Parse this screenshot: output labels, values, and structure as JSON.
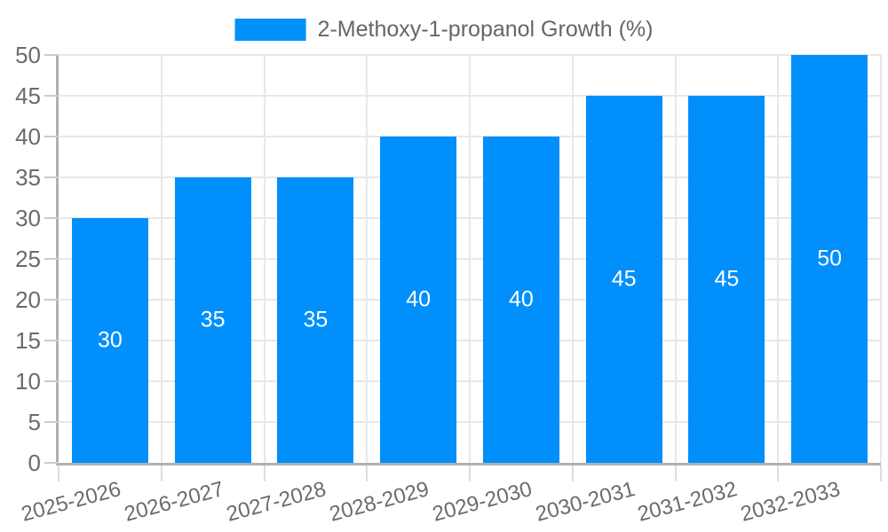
{
  "chart_data": {
    "type": "bar",
    "title": "2-Methoxy-1-propanol Growth (%)",
    "legend_position": "top",
    "categories": [
      "2025-2026",
      "2026-2027",
      "2027-2028",
      "2028-2029",
      "2029-2030",
      "2030-2031",
      "2031-2032",
      "2032-2033"
    ],
    "values": [
      30,
      35,
      35,
      40,
      40,
      45,
      45,
      50
    ],
    "bar_value_labels": [
      "30",
      "35",
      "35",
      "40",
      "40",
      "45",
      "45",
      "50"
    ],
    "series": [
      {
        "name": "2-Methoxy-1-propanol Growth (%)",
        "values": [
          30,
          35,
          35,
          40,
          40,
          45,
          45,
          50
        ]
      }
    ],
    "xlabel": "",
    "ylabel": "",
    "ylim": [
      0,
      50
    ],
    "ytick_step": 5,
    "ytick_labels": [
      "0",
      "5",
      "10",
      "15",
      "20",
      "25",
      "30",
      "35",
      "40",
      "45",
      "50"
    ],
    "grid": true,
    "x_label_rotation_deg": -15
  },
  "colors": {
    "bar": "#008FFB",
    "bar_label_text": "#ffffff",
    "legend_text": "#666666",
    "axis_tick_text": "#6b6b6b",
    "gridline": "#e8e8e8",
    "axis_line": "#b0b0b0",
    "tick_mark": "#cccccc",
    "background": "#ffffff"
  }
}
